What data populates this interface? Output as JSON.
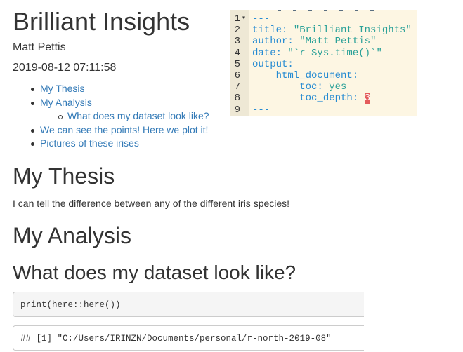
{
  "document": {
    "title": "Brilliant Insights",
    "author": "Matt Pettis",
    "date": "2019-08-12 07:11:58",
    "toc": [
      {
        "label": "My Thesis",
        "level": 1
      },
      {
        "label": "My Analysis",
        "level": 1
      },
      {
        "label": "What does my dataset look like?",
        "level": 2
      },
      {
        "label": "We can see the points! Here we plot it!",
        "level": 1
      },
      {
        "label": "Pictures of these irises",
        "level": 1
      }
    ],
    "sections": {
      "thesis_heading": "My Thesis",
      "thesis_text": "I can tell the difference between any of the different iris species!",
      "analysis_heading": "My Analysis",
      "dataset_heading": "What does my dataset look like?"
    },
    "code": {
      "source": "print(here::here())",
      "output": "## [1] \"C:/Users/IRINZN/Documents/personal/r-north-2019-08\""
    },
    "colors": {
      "link": "#337ab7",
      "editor_bg": "#fdf6e3",
      "editor_text": "#2aa198",
      "editor_key": "#268bd2"
    }
  },
  "editor": {
    "lines": [
      {
        "num": "1",
        "fold": "▾",
        "key": "---",
        "rest": ""
      },
      {
        "num": "2",
        "fold": "",
        "key": "title:",
        "rest": " \"Brilliant Insights\""
      },
      {
        "num": "3",
        "fold": "",
        "key": "author:",
        "rest": " \"Matt Pettis\""
      },
      {
        "num": "4",
        "fold": "",
        "key": "date:",
        "rest": " \"`r Sys.time()`\""
      },
      {
        "num": "5",
        "fold": "",
        "key": "output:",
        "rest": ""
      },
      {
        "num": "6",
        "fold": "",
        "key": "    html_document:",
        "rest": ""
      },
      {
        "num": "7",
        "fold": "",
        "key": "        toc:",
        "rest": " yes"
      },
      {
        "num": "8",
        "fold": "",
        "key": "        toc_depth:",
        "rest": " ",
        "cursor": "3"
      },
      {
        "num": "9",
        "fold": "",
        "key": "---",
        "rest": ""
      }
    ]
  }
}
